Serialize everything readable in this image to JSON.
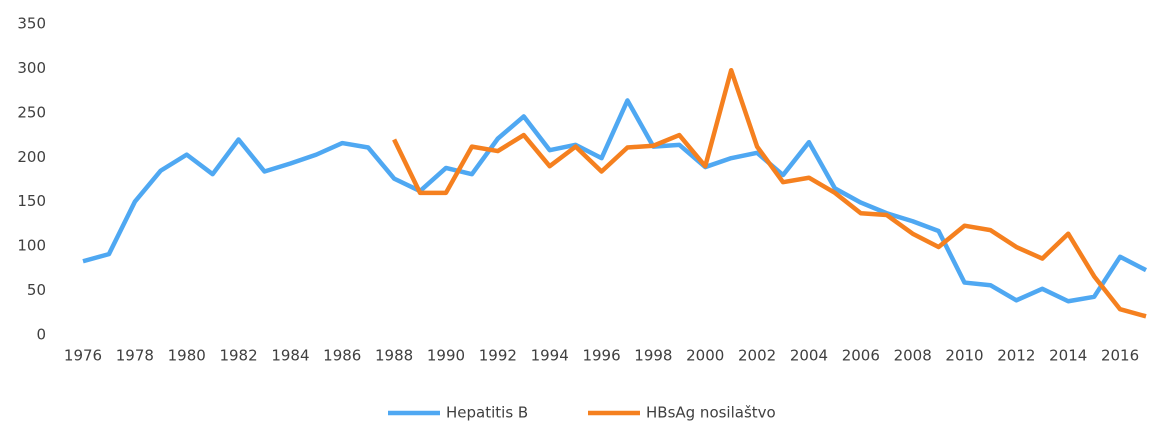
{
  "chart_data": {
    "type": "line",
    "categories": [
      "1976",
      null,
      "1978",
      null,
      "1980",
      null,
      "1982",
      null,
      "1984",
      null,
      "1986",
      null,
      "1988",
      null,
      "1990",
      null,
      "1992",
      null,
      "1994",
      null,
      "1996",
      null,
      "1998",
      null,
      "2000",
      null,
      "2002",
      null,
      "2004",
      null,
      "2006",
      null,
      "2008",
      null,
      "2010",
      null,
      "2012",
      null,
      "2014",
      null,
      "2016",
      null
    ],
    "series": [
      {
        "name": "Hepatitis B",
        "color": "#4fa8f2",
        "values": [
          83,
          91,
          150,
          185,
          203,
          181,
          220,
          184,
          193,
          203,
          216,
          211,
          176,
          162,
          188,
          181,
          221,
          246,
          208,
          214,
          199,
          264,
          212,
          214,
          189,
          199,
          205,
          180,
          217,
          165,
          149,
          137,
          128,
          117,
          59,
          56,
          39,
          52,
          38,
          43,
          88,
          73
        ]
      },
      {
        "name": "HBsAg nosilaštvo",
        "color": "#f5801f",
        "values": [
          null,
          null,
          null,
          null,
          null,
          null,
          null,
          null,
          null,
          null,
          null,
          null,
          220,
          160,
          160,
          212,
          207,
          225,
          190,
          212,
          184,
          211,
          213,
          225,
          190,
          298,
          212,
          172,
          177,
          160,
          137,
          135,
          114,
          99,
          123,
          118,
          99,
          86,
          114,
          66,
          29,
          21
        ]
      }
    ],
    "ylim": [
      0,
      350
    ],
    "yticks": [
      0,
      50,
      100,
      150,
      200,
      250,
      300,
      350
    ],
    "grid": false,
    "legend": "bottom"
  }
}
